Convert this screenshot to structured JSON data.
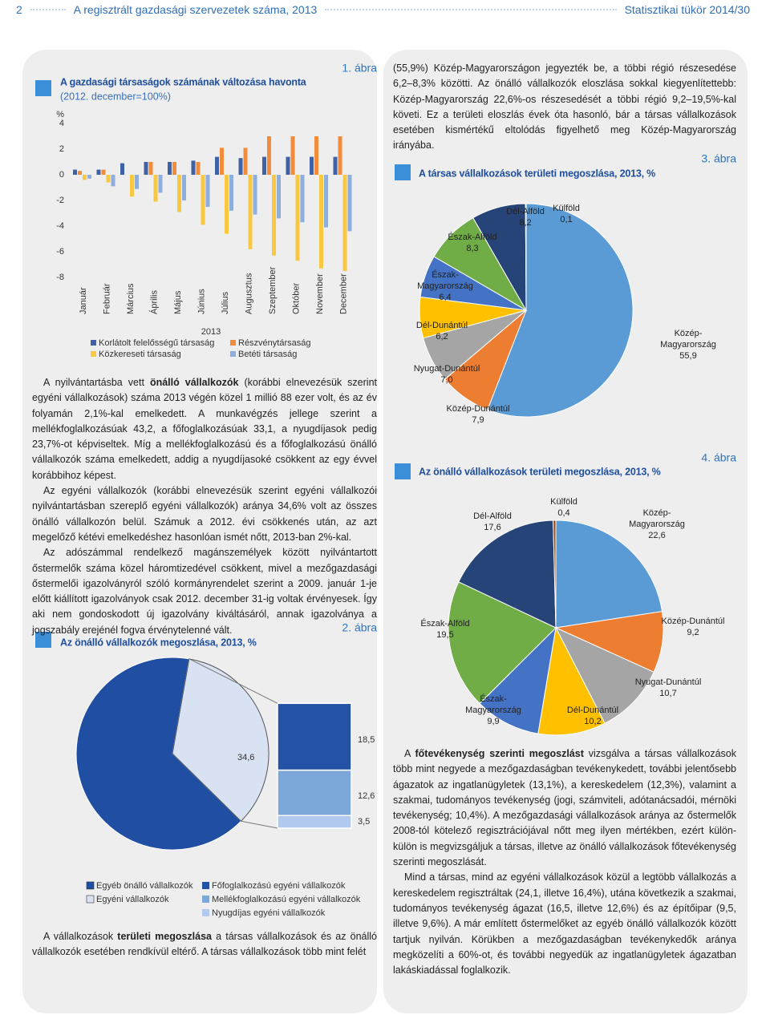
{
  "header": {
    "page": "2",
    "title": "A regisztrált gazdasági szervezetek száma, 2013",
    "publication": "Statisztikai tükör 2014/30"
  },
  "text": {
    "right_intro": [
      [
        {
          "text": "(55,9%) Közép-Magyarországon jegyezték be, a többi régió részesedése 6,2–8,3% közötti. Az önálló vállalkozók eloszlása sokkal kiegyenlítettebb: Közép-Magyarország 22,6%-os részesedését a többi régió 9,2–19,5%-kal követi. Ez a területi eloszlás évek óta hasonló, bár a társas vállalkozások esetében kismértékű eltolódás figyelhető meg Közép-Magyarország irányába."
        }
      ]
    ],
    "left_body": [
      [
        {
          "text": "A nyilvántartásba vett "
        },
        {
          "text": "önálló vállalkozók",
          "bold": true
        },
        {
          "text": " (korábbi elnevezésük szerint egyéni vállalkozások) száma 2013 végén közel 1 millió 88 ezer volt, és az év folyamán 2,1%-kal emelkedett. A munkavégzés jellege szerint a mellékfoglalkozásúak 43,2, a főfoglalkozásúak 33,1, a nyugdíjasok pedig 23,7%-ot képviseltek. Míg a mellékfoglalkozású és a főfoglalkozású önálló vállalkozók száma emelkedett, addig a nyugdíjasoké csökkent az egy évvel korábbihoz képest."
        }
      ],
      [
        {
          "text": "Az egyéni vállalkozók (korábbi elnevezésük szerint egyéni vállalkozói nyilvántartásban szereplő egyéni vállalkozók) aránya 34,6% volt az összes önálló vállalkozón belül. Számuk a 2012. évi csökkenés után, az azt megelőző kétévi emelkedéshez hasonlóan ismét nőtt, 2013-ban 2%-kal."
        }
      ],
      [
        {
          "text": "Az adószámmal rendelkező magánszemélyek között nyilvántartott őstermelők száma közel háromtizedével csökkent, mivel a mezőgazdasági őstermelői igazolványról szóló kormányrendelet szerint a 2009. január 1-je előtt kiállított igazolványok csak 2012. december 31-ig voltak érvényesek. Így aki nem gondoskodott új igazolvány kiváltásáról, annak igazolványa a jogszabály erejénél fogva érvénytelenné vált."
        }
      ]
    ],
    "left_bottom": [
      [
        {
          "text": "A vállalkozások "
        },
        {
          "text": "területi megoszlása",
          "bold": true
        },
        {
          "text": " a társas vállalkozások és az önálló vállalkozók esetében rendkívül eltérő. A társas vállalkozások több mint felét"
        }
      ]
    ],
    "right_bottom": [
      [
        {
          "text": "A "
        },
        {
          "text": "főtevékenység szerinti megoszlást",
          "bold": true
        },
        {
          "text": " vizsgálva a társas vállalkozások több mint negyede a mezőgazdaságban tevékenykedett, további jelentősebb ágazatok az ingatlanügyletek (13,1%), a kereskedelem (12,3%), valamint a szakmai, tudományos tevékenység (jogi, számviteli, adótanácsadói, mérnöki tevékenység; 10,4%). A mezőgazdasági vállalkozások aránya az őstermelők 2008-tól kötelező regisztrációjával nőtt meg ilyen mértékben, ezért külön-külön is megvizsgáljuk a társas, illetve az önálló vállalkozások főtevékenység szerinti megoszlását."
        }
      ],
      [
        {
          "text": "Mind a társas, mind az egyéni vállalkozások közül a legtöbb vállalkozás a kereskedelem regisztráltak (24,1, illetve 16,4%), utána következik a szakmai, tudományos tevékenység ágazat (16,5, illetve 12,6%) és az építőipar (9,5, illetve 9,6%). A már említett őstermelőket az egyéb önálló vállalkozók között tartjuk nyilván. Körükben a mezőgazdaságban tevékenykedők aránya megközelíti a 60%-ot, és további negyedük az ingatlanügyletek ágazatban lakáskiadással foglalkozik."
        }
      ]
    ]
  },
  "chart_data": [
    {
      "type": "bar",
      "figure_label": "1. ábra",
      "title": "A gazdasági társaságok számának változása havonta",
      "subtitle": "(2012. december=100%)",
      "y_label": "%",
      "x_label": "2013",
      "categories": [
        "Január",
        "Február",
        "Március",
        "Április",
        "Május",
        "Június",
        "Július",
        "Augusztus",
        "Szeptember",
        "Október",
        "November",
        "December"
      ],
      "ylim": [
        -8,
        4
      ],
      "yticks": [
        4,
        2,
        0,
        -2,
        -4,
        -6,
        -8
      ],
      "grid": false,
      "legend": "bottom",
      "series": [
        {
          "name": "Korlátolt felelősségű társaság",
          "color": "#3f62a7",
          "values": [
            0.4,
            0.4,
            0.9,
            1.0,
            1.0,
            1.1,
            1.4,
            1.3,
            1.4,
            1.4,
            1.4,
            1.4
          ]
        },
        {
          "name": "Részvénytársaság",
          "color": "#f28c3a",
          "values": [
            0.3,
            0.4,
            0.0,
            1.0,
            1.0,
            1.0,
            2.1,
            2.1,
            3.0,
            3.0,
            3.0,
            3.0
          ]
        },
        {
          "name": "Közkereseti társaság",
          "color": "#f9c843",
          "values": [
            -0.4,
            -0.6,
            -1.7,
            -2.1,
            -2.9,
            -3.9,
            -4.6,
            -5.8,
            -6.3,
            -6.7,
            -7.3,
            -7.5
          ]
        },
        {
          "name": "Betéti társaság",
          "color": "#8eaee0",
          "values": [
            -0.3,
            -0.9,
            -1.1,
            -1.4,
            -2.0,
            -2.5,
            -2.8,
            -3.1,
            -3.4,
            -3.7,
            -4.1,
            -4.4
          ]
        }
      ]
    },
    {
      "type": "pie-of-bar",
      "figure_label": "2. ábra",
      "title": "Az önálló vállalkozók megoszlása, 2013, %",
      "pie": {
        "categories": [
          "Egyéb önálló vállalkozók",
          "Egyéni vállalkozók"
        ],
        "values": [
          65.4,
          34.6
        ],
        "value_labels": [
          null,
          "34,6"
        ],
        "colors": [
          "#1f4ea3",
          "#d9e2f3"
        ]
      },
      "bar": {
        "series": [
          {
            "name": "Főfoglalkozású egyéni vállalkozók",
            "color": "#2452a4",
            "values": [
              18.5
            ],
            "value_labels": [
              "18,5"
            ]
          },
          {
            "name": "Mellékfoglalkozású egyéni vállalkozók",
            "color": "#7ba7d9",
            "values": [
              12.6
            ],
            "value_labels": [
              "12,6"
            ]
          },
          {
            "name": "Nyugdíjas egyéni vállalkozók",
            "color": "#b1c9ee",
            "values": [
              3.5
            ],
            "value_labels": [
              "3,5"
            ]
          }
        ]
      }
    },
    {
      "type": "pie",
      "figure_label": "3. ábra",
      "title": "A társas vállalkozások területi megoszlása, 2013, %",
      "categories": [
        "Közép-Magyarország",
        "Közép-Dunántúl",
        "Nyugat-Dunántúl",
        "Dél-Dunántúl",
        "Észak-Magyarország",
        "Észak-Alföld",
        "Dél-Alföld",
        "Külföld"
      ],
      "values": [
        55.9,
        7.9,
        7.0,
        6.2,
        6.4,
        8.3,
        8.2,
        0.1
      ],
      "value_labels": [
        "55,9",
        "7,9",
        "7,0",
        "6,2",
        "6,4",
        "8,3",
        "8,2",
        "0,1"
      ],
      "colors": [
        "#5b9bd5",
        "#ed7d31",
        "#a5a5a5",
        "#ffc000",
        "#4472c4",
        "#70ad47",
        "#264478",
        "#9e480e"
      ]
    },
    {
      "type": "pie",
      "figure_label": "4. ábra",
      "title": "Az önálló vállalkozások területi megoszlása, 2013, %",
      "categories": [
        "Közép-Magyarország",
        "Közép-Dunántúl",
        "Nyugat-Dunántúl",
        "Dél-Dunántúl",
        "Észak-Magyarország",
        "Észak-Alföld",
        "Dél-Alföld",
        "Külföld"
      ],
      "values": [
        22.6,
        9.2,
        10.7,
        10.2,
        9.9,
        19.5,
        17.6,
        0.4
      ],
      "value_labels": [
        "22,6",
        "9,2",
        "10,7",
        "10,2",
        "9,9",
        "19,5",
        "17,6",
        "0,4"
      ],
      "colors": [
        "#5b9bd5",
        "#ed7d31",
        "#a5a5a5",
        "#ffc000",
        "#4472c4",
        "#70ad47",
        "#264478",
        "#9e480e"
      ]
    }
  ]
}
